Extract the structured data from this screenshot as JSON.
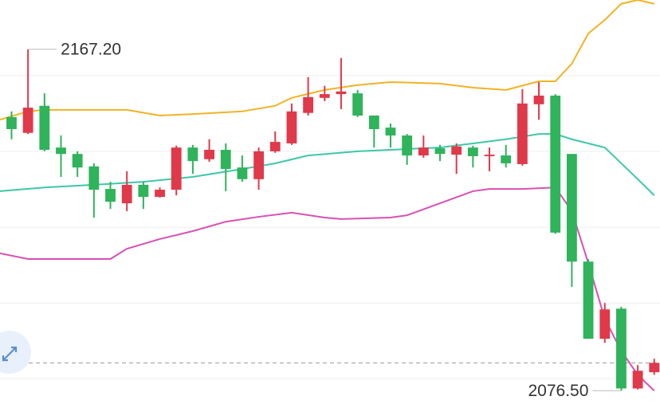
{
  "chart_data": {
    "type": "candlestick",
    "xlim": [
      -0.7,
      39.35
    ],
    "ylim": [
      2071.9,
      2180.3
    ],
    "yticks": [
      2160.2,
      2140.1,
      2119.9,
      2099.8,
      2079.7
    ],
    "grid": true,
    "up_color": "#e0394a",
    "down_color": "#2fb35b",
    "current_price": 2083.9,
    "open": [
      2149.2,
      2145.0,
      2152.2,
      2141.1,
      2139.4,
      2136.1,
      2130.1,
      2126.3,
      2131.2,
      2128.0,
      2129.9,
      2141.1,
      2138.0,
      2140.5,
      2135.8,
      2132.7,
      2140.1,
      2142.2,
      2150.3,
      2154.3,
      2155.3,
      2155.5,
      2149.6,
      2146.4,
      2144.3,
      2139.0,
      2140.9,
      2139.2,
      2141.1,
      2138.8,
      2139.0,
      2136.7,
      2152.6,
      2154.9,
      2139.4,
      2110.8,
      2090.3,
      2098.3,
      2077.1,
      2081.4
    ],
    "high": [
      2150.7,
      2167.2,
      2155.5,
      2144.3,
      2140.1,
      2136.9,
      2132.0,
      2134.8,
      2132.0,
      2130.5,
      2141.6,
      2141.8,
      2143.3,
      2142.2,
      2139.0,
      2141.1,
      2145.4,
      2152.8,
      2159.8,
      2157.5,
      2164.9,
      2156.4,
      2149.6,
      2147.5,
      2144.7,
      2144.3,
      2141.8,
      2142.2,
      2141.6,
      2141.1,
      2141.8,
      2156.6,
      2158.5,
      2155.3,
      2139.4,
      2111.5,
      2099.8,
      2098.8,
      2083.3,
      2085.0
    ],
    "low": [
      2143.3,
      2144.7,
      2140.1,
      2133.3,
      2133.3,
      2122.5,
      2124.8,
      2124.2,
      2124.8,
      2127.8,
      2128.4,
      2134.1,
      2137.3,
      2129.5,
      2132.0,
      2129.9,
      2139.7,
      2141.8,
      2149.6,
      2153.4,
      2151.3,
      2149.2,
      2141.1,
      2141.1,
      2136.5,
      2138.4,
      2137.5,
      2134.1,
      2135.8,
      2134.8,
      2135.8,
      2136.3,
      2148.5,
      2118.2,
      2104.1,
      2090.3,
      2089.2,
      2076.5,
      2076.8,
      2080.7
    ],
    "close": [
      2146.0,
      2151.7,
      2140.5,
      2139.4,
      2135.8,
      2129.9,
      2126.7,
      2131.2,
      2128.0,
      2129.9,
      2141.1,
      2137.5,
      2140.5,
      2135.4,
      2132.7,
      2140.1,
      2142.6,
      2150.7,
      2154.5,
      2155.3,
      2156.0,
      2149.6,
      2146.0,
      2144.3,
      2139.0,
      2141.1,
      2139.4,
      2141.4,
      2138.8,
      2139.2,
      2136.9,
      2152.8,
      2154.9,
      2118.5,
      2110.8,
      2090.3,
      2098.1,
      2077.1,
      2081.8,
      2083.9
    ],
    "series": [
      {
        "color": "#f0b323",
        "x": [
          -0.7,
          1,
          2,
          7,
          9,
          11,
          14,
          16,
          17,
          19,
          21,
          23,
          26,
          28,
          30,
          32,
          33,
          34,
          35,
          36,
          37,
          38,
          39
        ],
        "values": [
          2148.5,
          2150.7,
          2151.1,
          2151.1,
          2149.6,
          2150.0,
          2150.7,
          2152.2,
          2154.3,
          2156.4,
          2157.7,
          2158.5,
          2158.1,
          2157.0,
          2156.4,
          2158.7,
          2158.7,
          2163.4,
          2171.4,
          2175.0,
          2179.3,
          2180.3,
          2179.3
        ]
      },
      {
        "color": "#3cc8a8",
        "x": [
          -0.7,
          2,
          5,
          8,
          11,
          14,
          16,
          18,
          21,
          24,
          26,
          28,
          30,
          32,
          33,
          34,
          36,
          38,
          39
        ],
        "values": [
          2129.5,
          2130.5,
          2131.2,
          2132.0,
          2133.3,
          2135.4,
          2136.9,
          2139.0,
          2140.1,
          2140.7,
          2141.1,
          2142.2,
          2143.3,
          2144.7,
          2144.7,
          2143.3,
          2141.1,
          2132.7,
          2128.4
        ]
      },
      {
        "color": "#d94fb4",
        "x": [
          -0.7,
          1,
          6,
          7,
          9,
          11,
          13,
          15,
          17,
          19,
          20,
          23,
          24,
          26,
          28,
          29,
          31,
          33,
          34,
          35,
          36,
          37,
          38,
          39
        ],
        "values": [
          2113.0,
          2111.5,
          2111.5,
          2114.2,
          2116.8,
          2118.9,
          2121.4,
          2122.7,
          2123.8,
          2122.5,
          2122.1,
          2122.5,
          2123.1,
          2126.3,
          2129.5,
          2130.1,
          2130.1,
          2130.5,
          2124.2,
          2110.4,
          2095.6,
          2087.1,
          2080.7,
          2076.5
        ]
      }
    ],
    "annotations": [
      {
        "x": 1,
        "value": 2167.2,
        "label": "2167.20"
      },
      {
        "x": 37,
        "value": 2076.5,
        "label": "2076.50"
      }
    ]
  }
}
